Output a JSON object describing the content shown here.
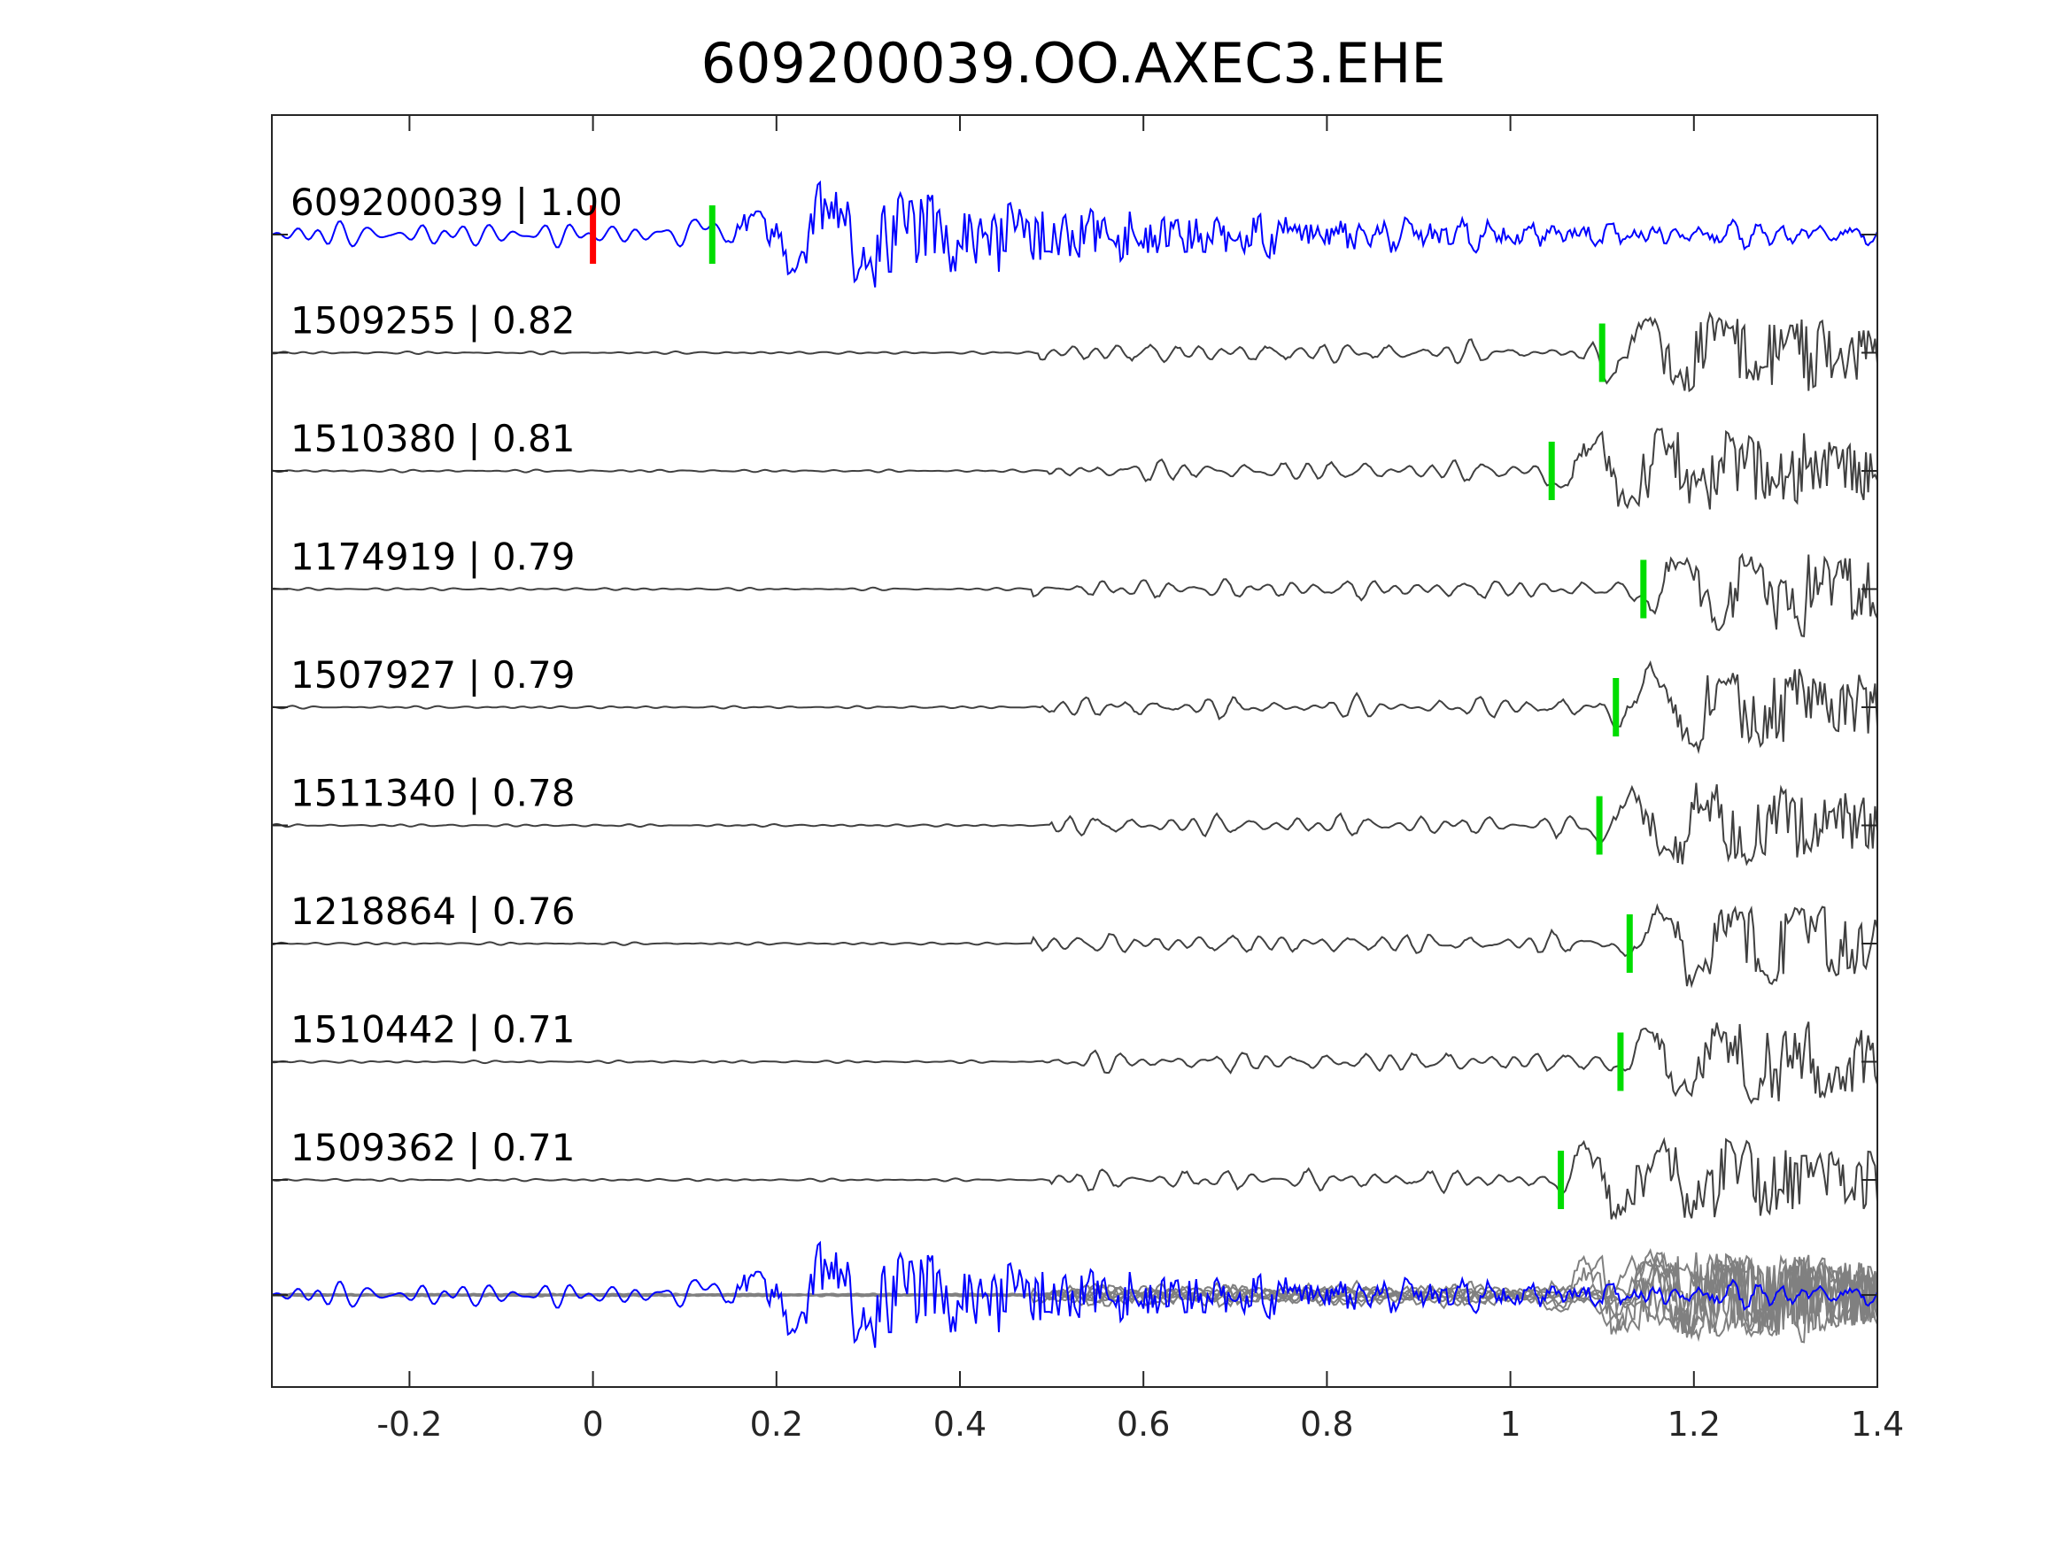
{
  "chart_data": {
    "type": "line",
    "title": "609200039.OO.AXEC3.EHE",
    "xlabel": "",
    "ylabel": "",
    "xlim": [
      -0.35,
      1.4
    ],
    "xticks": [
      -0.2,
      0,
      0.2,
      0.4,
      0.6,
      0.8,
      1,
      1.2,
      1.4
    ],
    "xtick_labels": [
      "-0.2",
      "0",
      "0.2",
      "0.4",
      "0.6",
      "0.8",
      "1",
      "1.2",
      "1.4"
    ],
    "grid": false,
    "colors": {
      "template": "#0000ff",
      "trace": "#404040",
      "overlay": "#808080",
      "origin_marker": "#ff0000",
      "pick_marker": "#00dd00",
      "axes": "#262626"
    },
    "traces": [
      {
        "label": "609200039 | 1.00",
        "id": "609200039",
        "cc": "1.00",
        "template": true,
        "pick": 0.13,
        "origin": 0.0
      },
      {
        "label": "1509255 | 0.82",
        "id": "1509255",
        "cc": "0.82",
        "pick": 1.1
      },
      {
        "label": "1510380 | 0.81",
        "id": "1510380",
        "cc": "0.81",
        "pick": 1.045
      },
      {
        "label": "1174919 | 0.79",
        "id": "1174919",
        "cc": "0.79",
        "pick": 1.145
      },
      {
        "label": "1507927 | 0.79",
        "id": "1507927",
        "cc": "0.79",
        "pick": 1.115
      },
      {
        "label": "1511340 | 0.78",
        "id": "1511340",
        "cc": "0.78",
        "pick": 1.097
      },
      {
        "label": "1218864 | 0.76",
        "id": "1218864",
        "cc": "0.76",
        "pick": 1.13
      },
      {
        "label": "1510442 | 0.71",
        "id": "1510442",
        "cc": "0.71",
        "pick": 1.12
      },
      {
        "label": "1509362 | 0.71",
        "id": "1509362",
        "cc": "0.71",
        "pick": 1.055
      }
    ]
  }
}
